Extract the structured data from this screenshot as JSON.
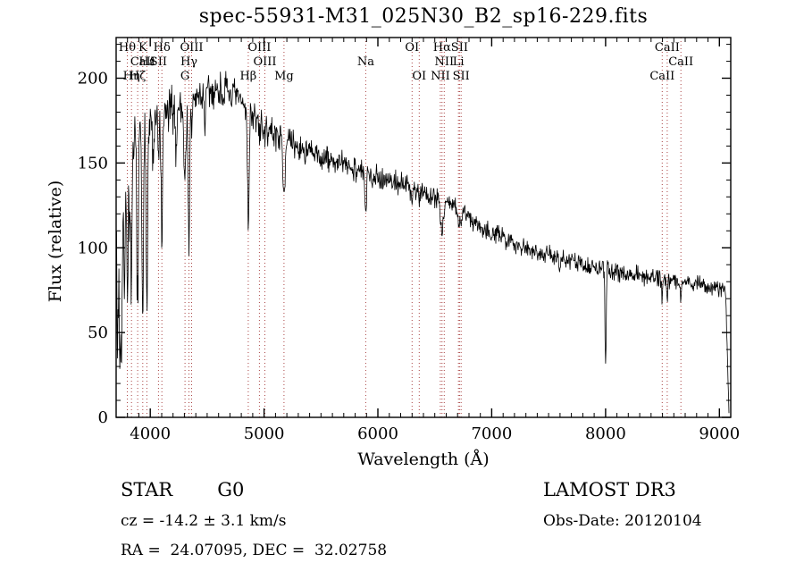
{
  "chart_data": {
    "type": "line",
    "title": "spec-55931-M31_025N30_B2_sp16-229.fits",
    "xlabel": "Wavelength (Å)",
    "ylabel": "Flux (relative)",
    "xlim": [
      3700,
      9100
    ],
    "ylim": [
      0,
      224
    ],
    "xticks_major": [
      4000,
      5000,
      6000,
      7000,
      8000,
      9000
    ],
    "xtick_minor_step": 100,
    "yticks_major": [
      0,
      50,
      100,
      150,
      200
    ],
    "ytick_minor_step": 10,
    "grid": false,
    "line_color": "#000000",
    "marker_color": "#aa4444",
    "continuum": [
      [
        3700,
        138
      ],
      [
        3750,
        144
      ],
      [
        3800,
        152
      ],
      [
        3850,
        158
      ],
      [
        3900,
        163
      ],
      [
        3950,
        168
      ],
      [
        4000,
        172
      ],
      [
        4100,
        177
      ],
      [
        4200,
        181
      ],
      [
        4300,
        185
      ],
      [
        4400,
        188
      ],
      [
        4500,
        191
      ],
      [
        4600,
        193
      ],
      [
        4700,
        191
      ],
      [
        4800,
        186
      ],
      [
        4900,
        178
      ],
      [
        5000,
        171
      ],
      [
        5100,
        167
      ],
      [
        5200,
        163
      ],
      [
        5300,
        159
      ],
      [
        5400,
        156
      ],
      [
        5500,
        153
      ],
      [
        5600,
        151
      ],
      [
        5700,
        149
      ],
      [
        5800,
        147
      ],
      [
        5900,
        144
      ],
      [
        6000,
        142
      ],
      [
        6100,
        140
      ],
      [
        6200,
        138
      ],
      [
        6300,
        135
      ],
      [
        6400,
        133
      ],
      [
        6500,
        130
      ],
      [
        6600,
        127
      ],
      [
        6700,
        123
      ],
      [
        6800,
        118
      ],
      [
        6900,
        113
      ],
      [
        7000,
        109
      ],
      [
        7100,
        106
      ],
      [
        7200,
        103
      ],
      [
        7300,
        100
      ],
      [
        7400,
        98
      ],
      [
        7500,
        96
      ],
      [
        7600,
        94
      ],
      [
        7700,
        92
      ],
      [
        7800,
        90
      ],
      [
        7900,
        88
      ],
      [
        8000,
        87
      ],
      [
        8100,
        86
      ],
      [
        8200,
        85
      ],
      [
        8300,
        84
      ],
      [
        8400,
        83
      ],
      [
        8500,
        82
      ],
      [
        8600,
        81
      ],
      [
        8700,
        80
      ],
      [
        8800,
        79
      ],
      [
        8900,
        77
      ],
      [
        9000,
        76
      ],
      [
        9100,
        74
      ]
    ],
    "absorption_lines": [
      [
        3712,
        95,
        7
      ],
      [
        3734,
        110,
        7
      ],
      [
        3750,
        85,
        6
      ],
      [
        3771,
        75,
        6
      ],
      [
        3798,
        80,
        6
      ],
      [
        3820,
        45,
        5
      ],
      [
        3835,
        88,
        6
      ],
      [
        3889,
        98,
        6
      ],
      [
        3934,
        125,
        6
      ],
      [
        3970,
        95,
        6
      ],
      [
        4026,
        30,
        5
      ],
      [
        4072,
        28,
        5
      ],
      [
        4102,
        72,
        7
      ],
      [
        4227,
        30,
        5
      ],
      [
        4305,
        45,
        9
      ],
      [
        4340,
        82,
        7
      ],
      [
        4363,
        18,
        5
      ],
      [
        4481,
        20,
        5
      ],
      [
        4861,
        68,
        7
      ],
      [
        4959,
        12,
        4
      ],
      [
        5007,
        12,
        4
      ],
      [
        5175,
        30,
        9
      ],
      [
        5893,
        27,
        7
      ],
      [
        6300,
        9,
        4
      ],
      [
        6363,
        7,
        4
      ],
      [
        6548,
        8,
        4
      ],
      [
        6563,
        22,
        7
      ],
      [
        6583,
        9,
        4
      ],
      [
        6708,
        7,
        4
      ],
      [
        6717,
        9,
        4
      ],
      [
        6731,
        9,
        4
      ],
      [
        7600,
        10,
        6
      ],
      [
        8000,
        58,
        5
      ],
      [
        8498,
        11,
        4
      ],
      [
        8542,
        14,
        4
      ],
      [
        8662,
        13,
        4
      ]
    ],
    "noise": {
      "seed": 7,
      "amplitude_anchors": [
        [
          3700,
          17
        ],
        [
          4000,
          11
        ],
        [
          4500,
          8
        ],
        [
          5000,
          6
        ],
        [
          6000,
          5
        ],
        [
          7000,
          4
        ],
        [
          9100,
          3.5
        ]
      ]
    },
    "sample_step": 4,
    "cutoff": {
      "start": 9055,
      "end": 9085
    },
    "markers": [
      {
        "label": "Hθ",
        "wl": 3798,
        "row": 0
      },
      {
        "label": "K",
        "wl": 3934,
        "row": 0
      },
      {
        "label": "Hδ",
        "wl": 4102,
        "row": 0
      },
      {
        "label": "OIII",
        "wl": 4363,
        "row": 0
      },
      {
        "label": "OIII",
        "wl": 4959,
        "row": 0
      },
      {
        "label": "OI",
        "wl": 6300,
        "row": 0
      },
      {
        "label": "Hα",
        "wl": 6563,
        "row": 0
      },
      {
        "label": "SII",
        "wl": 6717,
        "row": 0
      },
      {
        "label": "CaII",
        "wl": 8542,
        "row": 0
      },
      {
        "label": "CaII",
        "wl": 3934,
        "row": 1
      },
      {
        "label": "Hε",
        "wl": 3970,
        "row": 1
      },
      {
        "label": "SII",
        "wl": 4072,
        "row": 1
      },
      {
        "label": "Hγ",
        "wl": 4340,
        "row": 1
      },
      {
        "label": "OIII",
        "wl": 5007,
        "row": 1
      },
      {
        "label": "Na",
        "wl": 5893,
        "row": 1
      },
      {
        "label": "NII",
        "wl": 6583,
        "row": 1
      },
      {
        "label": "Li",
        "wl": 6708,
        "row": 1
      },
      {
        "label": "CaII",
        "wl": 8662,
        "row": 1
      },
      {
        "label": "Hη",
        "wl": 3835,
        "row": 2
      },
      {
        "label": "Hζ",
        "wl": 3889,
        "row": 2
      },
      {
        "label": "G",
        "wl": 4305,
        "row": 2
      },
      {
        "label": "Hβ",
        "wl": 4861,
        "row": 2
      },
      {
        "label": "Mg",
        "wl": 5175,
        "row": 2
      },
      {
        "label": "OI",
        "wl": 6363,
        "row": 2
      },
      {
        "label": "NII",
        "wl": 6548,
        "row": 2
      },
      {
        "label": "SII",
        "wl": 6731,
        "row": 2
      },
      {
        "label": "CaII",
        "wl": 8498,
        "row": 2
      }
    ]
  },
  "footer": {
    "object_type": "STAR",
    "subclass": "G0",
    "cz": "cz = -14.2 ± 3.1 km/s",
    "radec": "RA =  24.07095, DEC =  32.02758",
    "survey": "LAMOST DR3",
    "obs_date": "Obs-Date: 20120104"
  }
}
